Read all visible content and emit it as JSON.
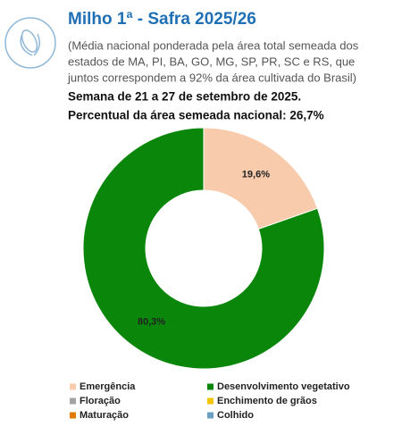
{
  "header": {
    "title": "Milho 1ª - Safra 2025/26",
    "subtitle_lines": [
      "(Média nacional ponderada pela área total semeada dos",
      "estados de MA, PI, BA, GO, MG, SP, PR, SC e RS, que",
      "juntos correspondem a 92% da área cultivada do Brasil)"
    ],
    "week": "Semana de 21 a 27 de setembro de 2025.",
    "percent_note": "Percentual da área semeada nacional: 26,7%"
  },
  "chart_data": {
    "type": "donut",
    "categories": [
      "Emergência",
      "Desenvolvimento vegetativo",
      "Floração",
      "Enchimento de grãos",
      "Maturação",
      "Colhido"
    ],
    "values": [
      19.6,
      80.3,
      0,
      0,
      0,
      0
    ],
    "value_labels": [
      "19,6%",
      "80,3%",
      null,
      null,
      null,
      null
    ],
    "colors": [
      "#f7cbac",
      "#0a870a",
      "#a3a3a3",
      "#f2c500",
      "#e07b00",
      "#6a9fc2"
    ],
    "legend": "bottom"
  }
}
